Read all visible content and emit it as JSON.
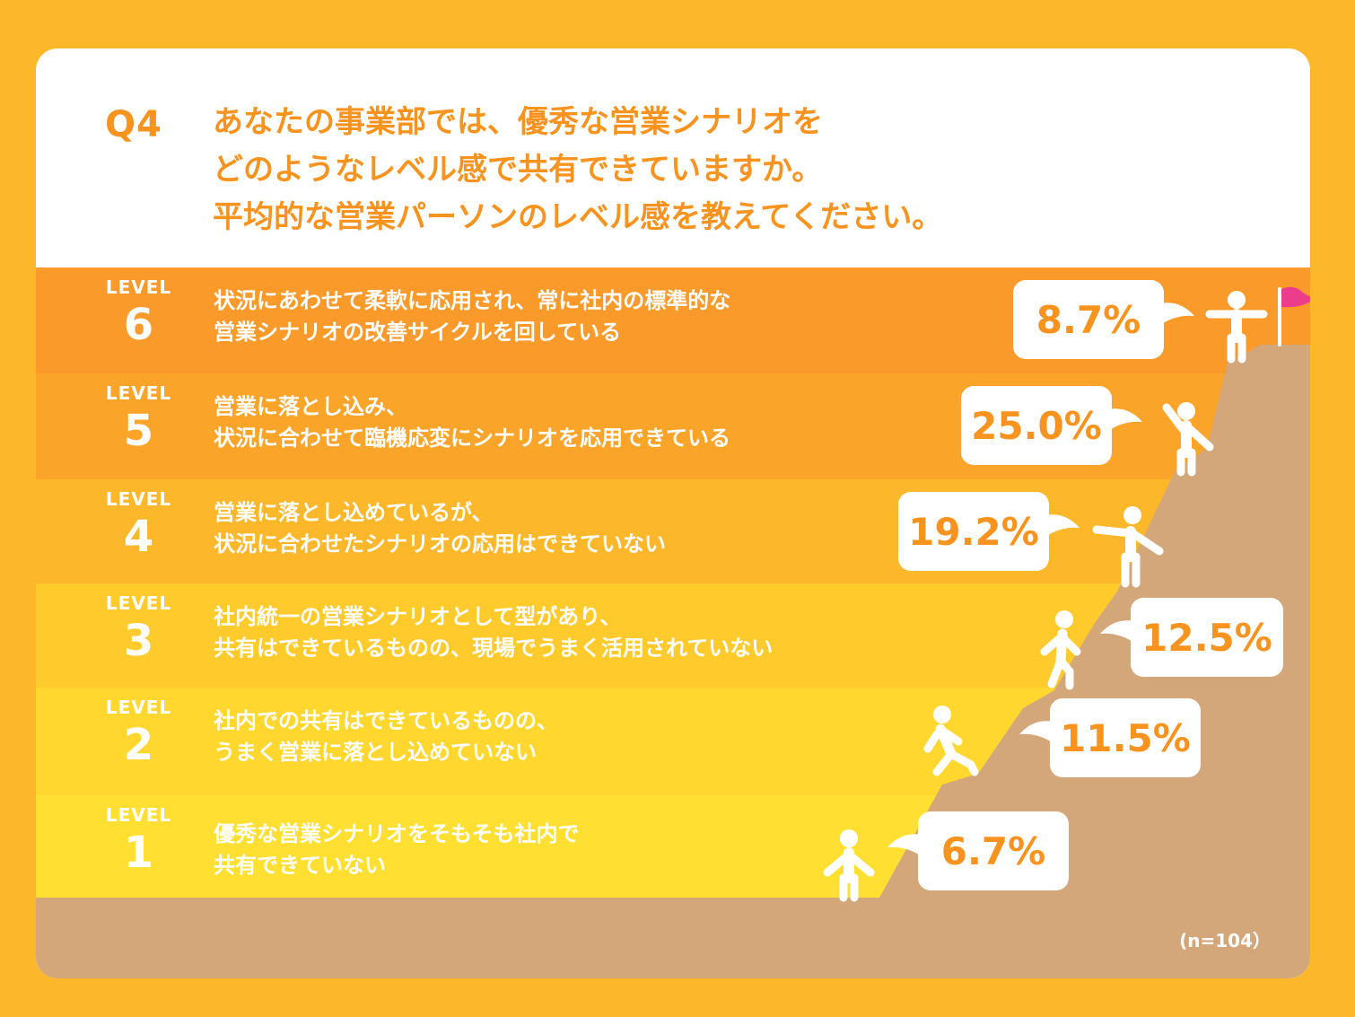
{
  "question": {
    "label": "Q4",
    "lines": [
      "あなたの事業部では、優秀な営業シナリオを",
      "どのようなレベル感で共有できていますか。",
      "平均的な営業パーソンのレベル感を教えてください。"
    ]
  },
  "level_word": "LEVEL",
  "sample_note": "(n=104）",
  "colors": {
    "background": "#FDB72A",
    "title": "#F7931E",
    "mountain": "#D3A77A",
    "flag": "#EC3D8C",
    "bands": [
      "#FFE032",
      "#FFD72F",
      "#FFCA2C",
      "#FDB72A",
      "#FBA42A",
      "#F99A2B"
    ]
  },
  "chart_data": {
    "type": "bar",
    "levels": [
      {
        "number": "1",
        "description_lines": [
          "優秀な営業シナリオをそもそも社内で",
          "共有できていない"
        ]
      },
      {
        "number": "2",
        "description_lines": [
          "社内での共有はできているものの、",
          "うまく営業に落とし込めていない"
        ]
      },
      {
        "number": "3",
        "description_lines": [
          "社内統一の営業シナリオとして型があり、",
          "共有はできているものの、現場でうまく活用されていない"
        ]
      },
      {
        "number": "4",
        "description_lines": [
          "営業に落とし込めているが、",
          "状況に合わせたシナリオの応用はできていない"
        ]
      },
      {
        "number": "5",
        "description_lines": [
          "営業に落とし込み、",
          "状況に合わせて臨機応変にシナリオを応用できている"
        ]
      },
      {
        "number": "6",
        "description_lines": [
          "状況にあわせて柔軟に応用され、常に社内の標準的な",
          "営業シナリオの改善サイクルを回している"
        ]
      }
    ],
    "categories": [
      "LEVEL 1",
      "LEVEL 2",
      "LEVEL 3",
      "LEVEL 4",
      "LEVEL 5",
      "LEVEL 6"
    ],
    "values": [
      6.7,
      11.5,
      12.5,
      19.2,
      25.0,
      8.7
    ],
    "value_labels": [
      "6.7%",
      "11.5%",
      "12.5%",
      "19.2%",
      "25.0%",
      "8.7%"
    ],
    "unit": "%"
  }
}
